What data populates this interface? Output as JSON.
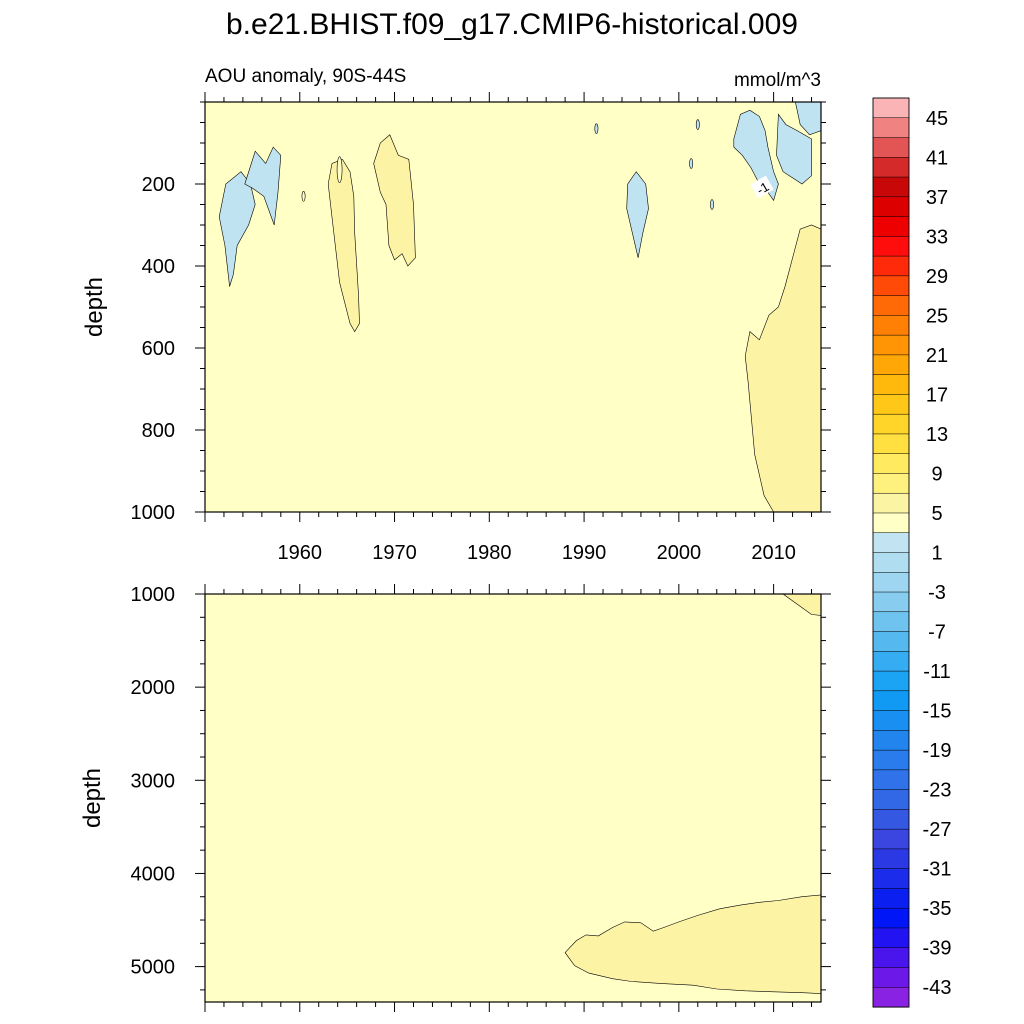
{
  "title": "b.e21.BHIST.f09_g17.CMIP6-historical.009",
  "subtitle_left": "AOU anomaly, 90S-44S",
  "subtitle_right": "mmol/m^3",
  "chart_data": [
    {
      "type": "contour",
      "panel": "upper",
      "ylabel": "depth",
      "xlim": [
        1950,
        2015
      ],
      "ylim": [
        1000,
        0
      ],
      "x_ticks": [
        1960,
        1970,
        1980,
        1990,
        2000,
        2010
      ],
      "x_tick_labels": [
        "1960",
        "1970",
        "1980",
        "1990",
        "2000",
        "2010"
      ],
      "y_ticks": [
        200,
        400,
        600,
        800,
        1000
      ],
      "y_tick_labels": [
        "200",
        "400",
        "600",
        "800",
        "1000"
      ],
      "background_level": "-1 to 1",
      "contour_label": "-1",
      "regions": [
        {
          "level": "-3 to -1",
          "color": "#bfe3f0",
          "points": [
            [
              1951.5,
              280
            ],
            [
              1952.2,
              200
            ],
            [
              1953.8,
              170
            ],
            [
              1954.8,
              200
            ],
            [
              1955.3,
              250
            ],
            [
              1954.6,
              300
            ],
            [
              1953.4,
              350
            ],
            [
              1953.0,
              420
            ],
            [
              1952.6,
              450
            ],
            [
              1952.1,
              350
            ]
          ]
        },
        {
          "level": "-3 to -1",
          "color": "#bfe3f0",
          "points": [
            [
              1954.2,
              200
            ],
            [
              1955.3,
              120
            ],
            [
              1956.4,
              150
            ],
            [
              1957.2,
              110
            ],
            [
              1958.0,
              130
            ],
            [
              1957.7,
              220
            ],
            [
              1957.3,
              300
            ],
            [
              1956.2,
              230
            ],
            [
              1955.0,
              210
            ]
          ]
        },
        {
          "level": "1 to 3",
          "color": "#fcf3a5",
          "points": [
            [
              1963.0,
              200
            ],
            [
              1963.4,
              150
            ],
            [
              1964.5,
              140
            ],
            [
              1965.3,
              170
            ],
            [
              1965.7,
              230
            ],
            [
              1965.8,
              320
            ],
            [
              1966.2,
              470
            ],
            [
              1966.3,
              540
            ],
            [
              1965.8,
              560
            ],
            [
              1965.3,
              540
            ],
            [
              1964.2,
              440
            ],
            [
              1963.5,
              300
            ]
          ]
        },
        {
          "level": "1 to 3",
          "color": "#fcf3a5",
          "points": [
            [
              1967.8,
              150
            ],
            [
              1968.5,
              100
            ],
            [
              1969.5,
              80
            ],
            [
              1970.4,
              130
            ],
            [
              1971.5,
              140
            ],
            [
              1972.0,
              250
            ],
            [
              1972.2,
              380
            ],
            [
              1971.4,
              400
            ],
            [
              1970.8,
              370
            ],
            [
              1970.0,
              385
            ],
            [
              1969.4,
              350
            ],
            [
              1969.1,
              250
            ],
            [
              1968.5,
              220
            ]
          ]
        },
        {
          "level": "-3 to -1",
          "color": "#bfe3f0",
          "points": [
            [
              1994.5,
              260
            ],
            [
              1994.6,
              200
            ],
            [
              1995.5,
              170
            ],
            [
              1996.5,
              200
            ],
            [
              1996.8,
              260
            ],
            [
              1996.2,
              320
            ],
            [
              1995.7,
              380
            ],
            [
              1995.1,
              320
            ]
          ]
        },
        {
          "level": "-3 to -1",
          "color": "#bfe3f0",
          "points": [
            [
              2005.8,
              90
            ],
            [
              2006.5,
              30
            ],
            [
              2007.5,
              20
            ],
            [
              2008.5,
              35
            ],
            [
              2009.1,
              70
            ],
            [
              2009.4,
              110
            ],
            [
              2010.0,
              170
            ],
            [
              2010.5,
              200
            ],
            [
              2010.0,
              240
            ],
            [
              2009.4,
              220
            ],
            [
              2008.5,
              200
            ],
            [
              2007.6,
              160
            ],
            [
              2006.7,
              130
            ],
            [
              2005.8,
              110
            ]
          ]
        },
        {
          "level": "-3 to -1",
          "color": "#bfe3f0",
          "points": [
            [
              2010.5,
              30
            ],
            [
              2011.3,
              55
            ],
            [
              2012.5,
              70
            ],
            [
              2014.0,
              90
            ],
            [
              2014.0,
              180
            ],
            [
              2013.0,
              200
            ],
            [
              2012.0,
              185
            ],
            [
              2011.0,
              170
            ],
            [
              2010.3,
              130
            ]
          ]
        },
        {
          "level": "-3 to -1",
          "color": "#bfe3f0",
          "points": [
            [
              2012.3,
              0
            ],
            [
              2015,
              0
            ],
            [
              2015,
              70
            ],
            [
              2013.8,
              80
            ],
            [
              2012.8,
              55
            ]
          ]
        },
        {
          "level": "1 to 3",
          "color": "#fcf3a5",
          "points": [
            [
              2007.3,
              680
            ],
            [
              2007.0,
              620
            ],
            [
              2007.5,
              560
            ],
            [
              2008.5,
              580
            ],
            [
              2009.5,
              520
            ],
            [
              2010.5,
              500
            ],
            [
              2011.2,
              450
            ],
            [
              2012.0,
              380
            ],
            [
              2012.8,
              310
            ],
            [
              2014.0,
              300
            ],
            [
              2015,
              310
            ],
            [
              2015,
              1000
            ],
            [
              2010.0,
              1000
            ],
            [
              2009.0,
              960
            ],
            [
              2008.0,
              860
            ]
          ]
        }
      ],
      "unlabeled_small_features": [
        {
          "x": 1960.4,
          "y": 230
        },
        {
          "x": 1991.3,
          "y": 65
        },
        {
          "x": 2002.0,
          "y": 55
        },
        {
          "x": 2001.3,
          "y": 150
        },
        {
          "x": 2003.5,
          "y": 250
        }
      ]
    },
    {
      "type": "contour",
      "panel": "lower",
      "ylabel": "depth",
      "xlim": [
        1950,
        2015
      ],
      "ylim": [
        5380,
        1000
      ],
      "y_ticks": [
        1000,
        2000,
        3000,
        4000,
        5000
      ],
      "y_tick_labels": [
        "1000",
        "2000",
        "3000",
        "4000",
        "5000"
      ],
      "background_level": "-1 to 1",
      "regions": [
        {
          "level": "1 to 3",
          "color": "#fcf3a5",
          "points": [
            [
              2011.0,
              1000
            ],
            [
              2015,
              1000
            ],
            [
              2015,
              1230
            ],
            [
              2014.0,
              1220
            ],
            [
              2012.5,
              1110
            ]
          ]
        },
        {
          "level": "1 to 3",
          "color": "#fcf3a5",
          "points": [
            [
              1988.0,
              4850
            ],
            [
              1989.2,
              4720
            ],
            [
              1990.2,
              4660
            ],
            [
              1991.5,
              4670
            ],
            [
              1993.0,
              4580
            ],
            [
              1994.3,
              4520
            ],
            [
              1996.0,
              4530
            ],
            [
              1997.3,
              4620
            ],
            [
              1998.4,
              4580
            ],
            [
              2000.0,
              4520
            ],
            [
              2002.0,
              4450
            ],
            [
              2004.3,
              4380
            ],
            [
              2006.5,
              4340
            ],
            [
              2008.5,
              4310
            ],
            [
              2010.5,
              4290
            ],
            [
              2013.0,
              4250
            ],
            [
              2015,
              4230
            ],
            [
              2015,
              5290
            ],
            [
              2013.0,
              5280
            ],
            [
              2010.0,
              5270
            ],
            [
              2007.0,
              5260
            ],
            [
              2004.0,
              5240
            ],
            [
              2001.5,
              5200
            ],
            [
              1998.0,
              5180
            ],
            [
              1995.0,
              5160
            ],
            [
              1993.0,
              5130
            ],
            [
              1990.5,
              5070
            ],
            [
              1989.0,
              4990
            ]
          ]
        }
      ]
    },
    {
      "type": "colorbar",
      "labels": [
        "45",
        "41",
        "37",
        "33",
        "29",
        "25",
        "21",
        "17",
        "13",
        "9",
        "5",
        "1",
        "-3",
        "-7",
        "-11",
        "-15",
        "-19",
        "-23",
        "-27",
        "-31",
        "-35",
        "-39",
        "-43"
      ],
      "colors": [
        "#fbb4b6",
        "#f08282",
        "#e35555",
        "#d52a2a",
        "#c80808",
        "#dc0000",
        "#ef0000",
        "#ff0d0d",
        "#ff2a0a",
        "#ff4a08",
        "#ff6a06",
        "#ff8005",
        "#ff9404",
        "#ffa706",
        "#ffb80c",
        "#ffc818",
        "#ffd52a",
        "#ffe040",
        "#ffea60",
        "#fff17e",
        "#fbf4a2",
        "#ffffc6",
        "#c2e4f2",
        "#b0ddf0",
        "#9ed5f0",
        "#88ccef",
        "#6fc3ef",
        "#55b9f0",
        "#36adf2",
        "#1ca4f4",
        "#109af3",
        "#198ff1",
        "#2285ee",
        "#2a7bec",
        "#2f72e9",
        "#3268e6",
        "#3458e2",
        "#3a46df",
        "#2a39e4",
        "#1b2cea",
        "#0b1ff0",
        "#0016f6",
        "#2214f2",
        "#4a14ec",
        "#6c18e8",
        "#8a22e4"
      ]
    }
  ]
}
